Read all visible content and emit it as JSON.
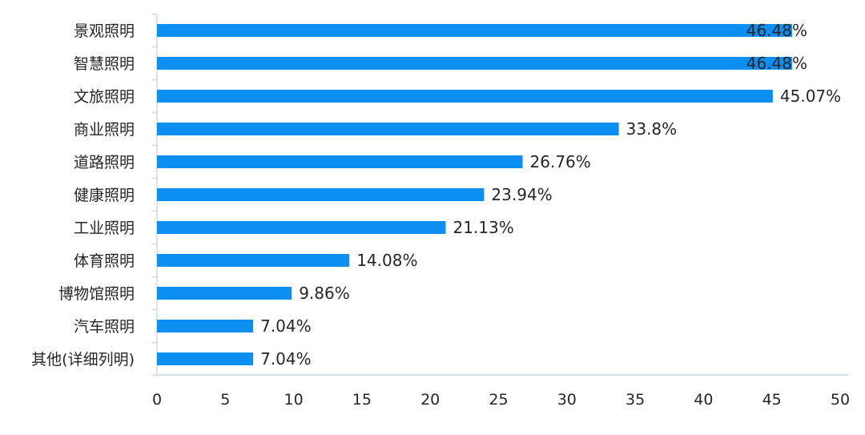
{
  "chart_data": {
    "type": "bar",
    "orientation": "horizontal",
    "categories": [
      "景观照明",
      "智慧照明",
      "文旅照明",
      "商业照明",
      "道路照明",
      "健康照明",
      "工业照明",
      "体育照明",
      "博物馆照明",
      "汽车照明",
      "其他(详细列明)"
    ],
    "values": [
      46.48,
      46.48,
      45.07,
      33.8,
      26.76,
      23.94,
      21.13,
      14.08,
      9.86,
      7.04,
      7.04
    ],
    "data_labels": [
      "46.48%",
      "46.48%",
      "45.07%",
      "33.8%",
      "26.76%",
      "23.94%",
      "21.13%",
      "14.08%",
      "9.86%",
      "7.04%",
      "7.04%"
    ],
    "x_ticks": [
      "0",
      "5",
      "10",
      "15",
      "20",
      "25",
      "30",
      "35",
      "40",
      "45",
      "50"
    ],
    "xlim": [
      0,
      50
    ],
    "title": "",
    "xlabel": "",
    "ylabel": "",
    "grid": false,
    "legend": "none",
    "bar_color": "#0d8ff2",
    "axis_color": "#c9d9ea",
    "text_color": "#262626"
  }
}
